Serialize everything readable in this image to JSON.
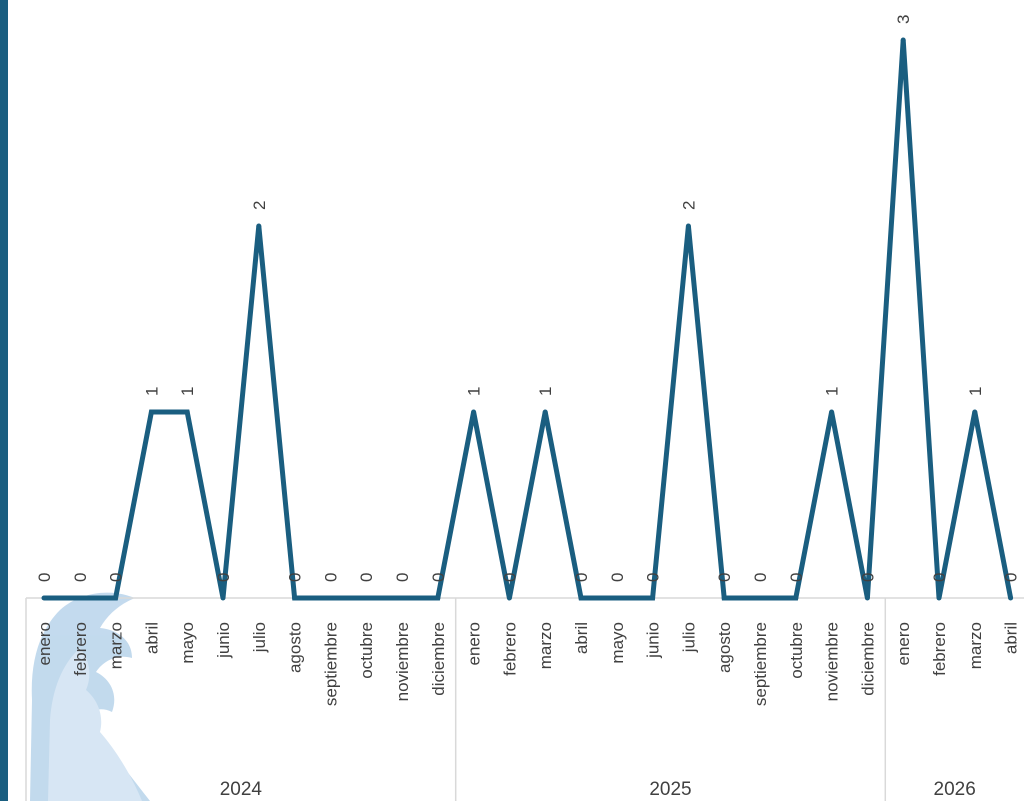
{
  "chart_data": {
    "type": "line",
    "groups": [
      {
        "label": "2024",
        "months": [
          "enero",
          "febrero",
          "marzo",
          "abril",
          "mayo",
          "junio",
          "julio",
          "agosto",
          "septiembre",
          "octubre",
          "noviembre",
          "diciembre"
        ]
      },
      {
        "label": "2025",
        "months": [
          "enero",
          "febrero",
          "marzo",
          "abril",
          "mayo",
          "junio",
          "julio",
          "agosto",
          "septiembre",
          "octubre",
          "noviembre",
          "diciembre"
        ]
      },
      {
        "label": "2026",
        "months": [
          "enero",
          "febrero",
          "marzo",
          "abril"
        ]
      }
    ],
    "values": [
      0,
      0,
      0,
      1,
      1,
      0,
      2,
      0,
      0,
      0,
      0,
      0,
      1,
      0,
      1,
      0,
      0,
      0,
      2,
      0,
      0,
      0,
      1,
      0,
      3,
      0,
      1,
      0
    ],
    "data_labels": true,
    "ylim": [
      0,
      3
    ],
    "grid": false,
    "legend": "none",
    "colors": {
      "line": "#1a5e80",
      "axis": "#d9d9d9",
      "text": "#404040",
      "watermark": "#bcd6ec"
    }
  },
  "watermark_icon": "woman-profile-silhouette"
}
